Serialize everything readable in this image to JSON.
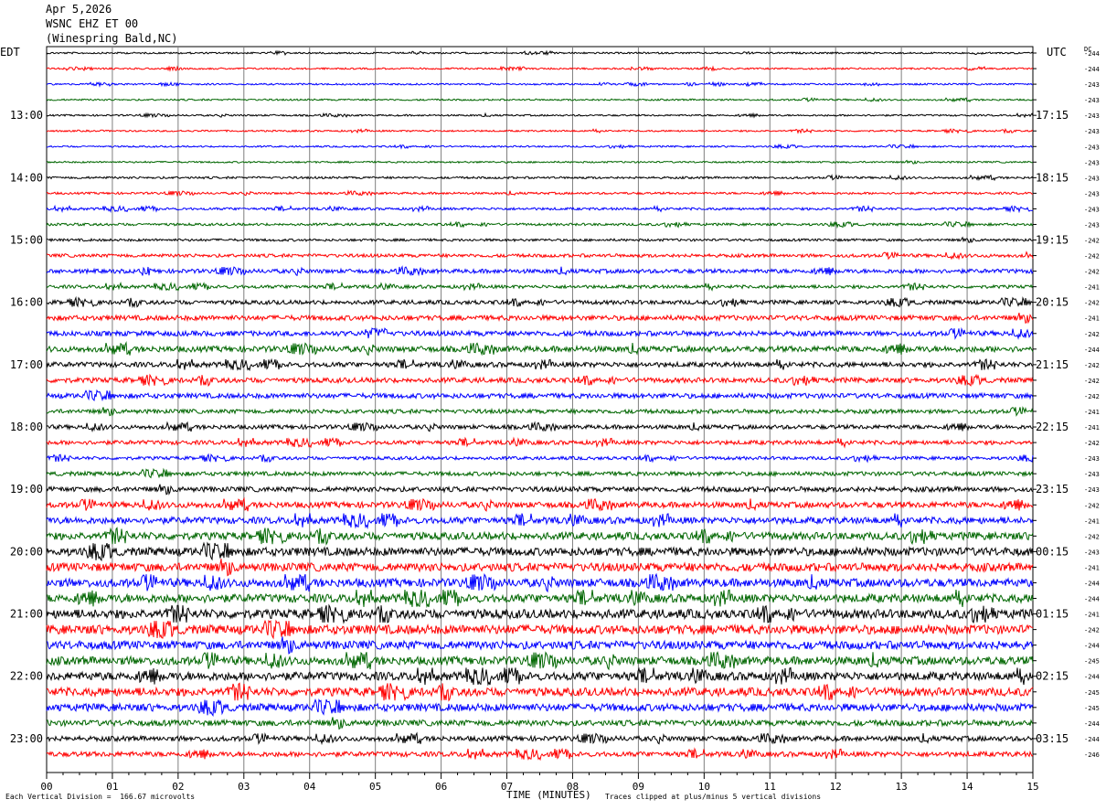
{
  "header": {
    "date": "Apr 5,2026",
    "station": "WSNC EHZ ET 00",
    "site": "(Winespring Bald,NC)"
  },
  "labels": {
    "left_tz": "EDT",
    "right_tz": "UTC",
    "dc": "DC"
  },
  "footer": {
    "scale_note": "Each Vertical Division =  166.67 microvolts",
    "x_axis_title": "TIME (MINUTES)",
    "clip_note": "Traces clipped at plus/minus 5 vertical divisions"
  },
  "colors": {
    "trace_cycle": [
      "#000000",
      "#ff0000",
      "#0000ff",
      "#006600"
    ],
    "grid": "#7f7f7f"
  },
  "chart_data": {
    "type": "line",
    "title": "Apr 5,2026 WSNC EHZ ET 00 (Winespring Bald,NC)",
    "xlabel": "TIME (MINUTES)",
    "x_ticks": [
      "00",
      "01",
      "02",
      "03",
      "04",
      "05",
      "06",
      "07",
      "08",
      "09",
      "10",
      "11",
      "12",
      "13",
      "14",
      "15"
    ],
    "xlim": [
      0,
      15
    ],
    "grid": true,
    "left_hour_labels": [
      "13:00",
      "14:00",
      "15:00",
      "16:00",
      "17:00",
      "18:00",
      "19:00",
      "20:00",
      "21:00",
      "22:00",
      "23:00"
    ],
    "right_hour_labels": [
      "17:15",
      "18:15",
      "19:15",
      "20:15",
      "21:15",
      "22:15",
      "23:15",
      "00:15",
      "01:15",
      "02:15",
      "03:15"
    ],
    "dc_offsets": [
      -244,
      -244,
      -243,
      -243,
      -243,
      -243,
      -243,
      -243,
      -243,
      -243,
      -243,
      -243,
      -242,
      -242,
      -242,
      -241,
      -242,
      -241,
      -242,
      -244,
      -242,
      -242,
      -242,
      -241,
      -241,
      -242,
      -243,
      -243,
      -243,
      -242,
      -241,
      -242,
      -243,
      -241,
      -244,
      -244,
      -241,
      -242,
      -244,
      -245,
      -244,
      -245,
      -245,
      -244,
      -244,
      -246
    ],
    "amplitude_levels": [
      1,
      1,
      1,
      1,
      1,
      1,
      1,
      1,
      1.3,
      1.3,
      1.5,
      1.5,
      1.5,
      2,
      2.5,
      2,
      2.5,
      3,
      3,
      3.5,
      3,
      3,
      3,
      2.5,
      2.5,
      2.5,
      2,
      2.5,
      3,
      3.5,
      4,
      4.5,
      5,
      5,
      5,
      5,
      5.5,
      5.5,
      5,
      5,
      5,
      5,
      4.5,
      3.5,
      3,
      3
    ]
  }
}
